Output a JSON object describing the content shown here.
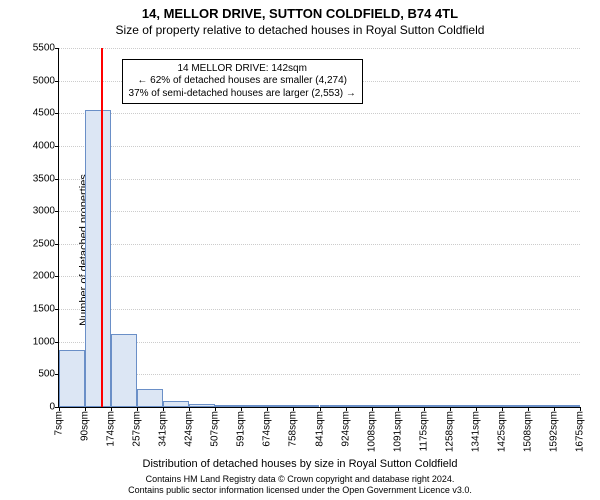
{
  "title": "14, MELLOR DRIVE, SUTTON COLDFIELD, B74 4TL",
  "subtitle": "Size of property relative to detached houses in Royal Sutton Coldfield",
  "ylabel": "Number of detached properties",
  "xlabel": "Distribution of detached houses by size in Royal Sutton Coldfield",
  "footnote1": "Contains HM Land Registry data © Crown copyright and database right 2024.",
  "footnote2": "Contains public sector information licensed under the Open Government Licence v3.0.",
  "callout": {
    "line1": "14 MELLOR DRIVE: 142sqm",
    "line2": "← 62% of detached houses are smaller (4,274)",
    "line3": "37% of semi-detached houses are larger (2,553) →"
  },
  "chart": {
    "type": "histogram",
    "ylim": [
      0,
      5500
    ],
    "ytick_step": 500,
    "xtick_labels": [
      "7sqm",
      "90sqm",
      "174sqm",
      "257sqm",
      "341sqm",
      "424sqm",
      "507sqm",
      "591sqm",
      "674sqm",
      "758sqm",
      "841sqm",
      "924sqm",
      "1008sqm",
      "1091sqm",
      "1175sqm",
      "1258sqm",
      "1341sqm",
      "1425sqm",
      "1508sqm",
      "1592sqm",
      "1675sqm"
    ],
    "bar_values": [
      880,
      4550,
      1120,
      280,
      90,
      50,
      30,
      20,
      10,
      5,
      5,
      3,
      2,
      2,
      2,
      1,
      1,
      1,
      1,
      1
    ],
    "bar_fill": "#dce6f4",
    "bar_border": "#6a8fc7",
    "marker_ratio": 0.081,
    "marker_color": "#ff0000",
    "grid_color": "#cccccc",
    "background_color": "#ffffff",
    "title_fontsize": 13,
    "label_fontsize": 11,
    "tick_fontsize": 10
  }
}
